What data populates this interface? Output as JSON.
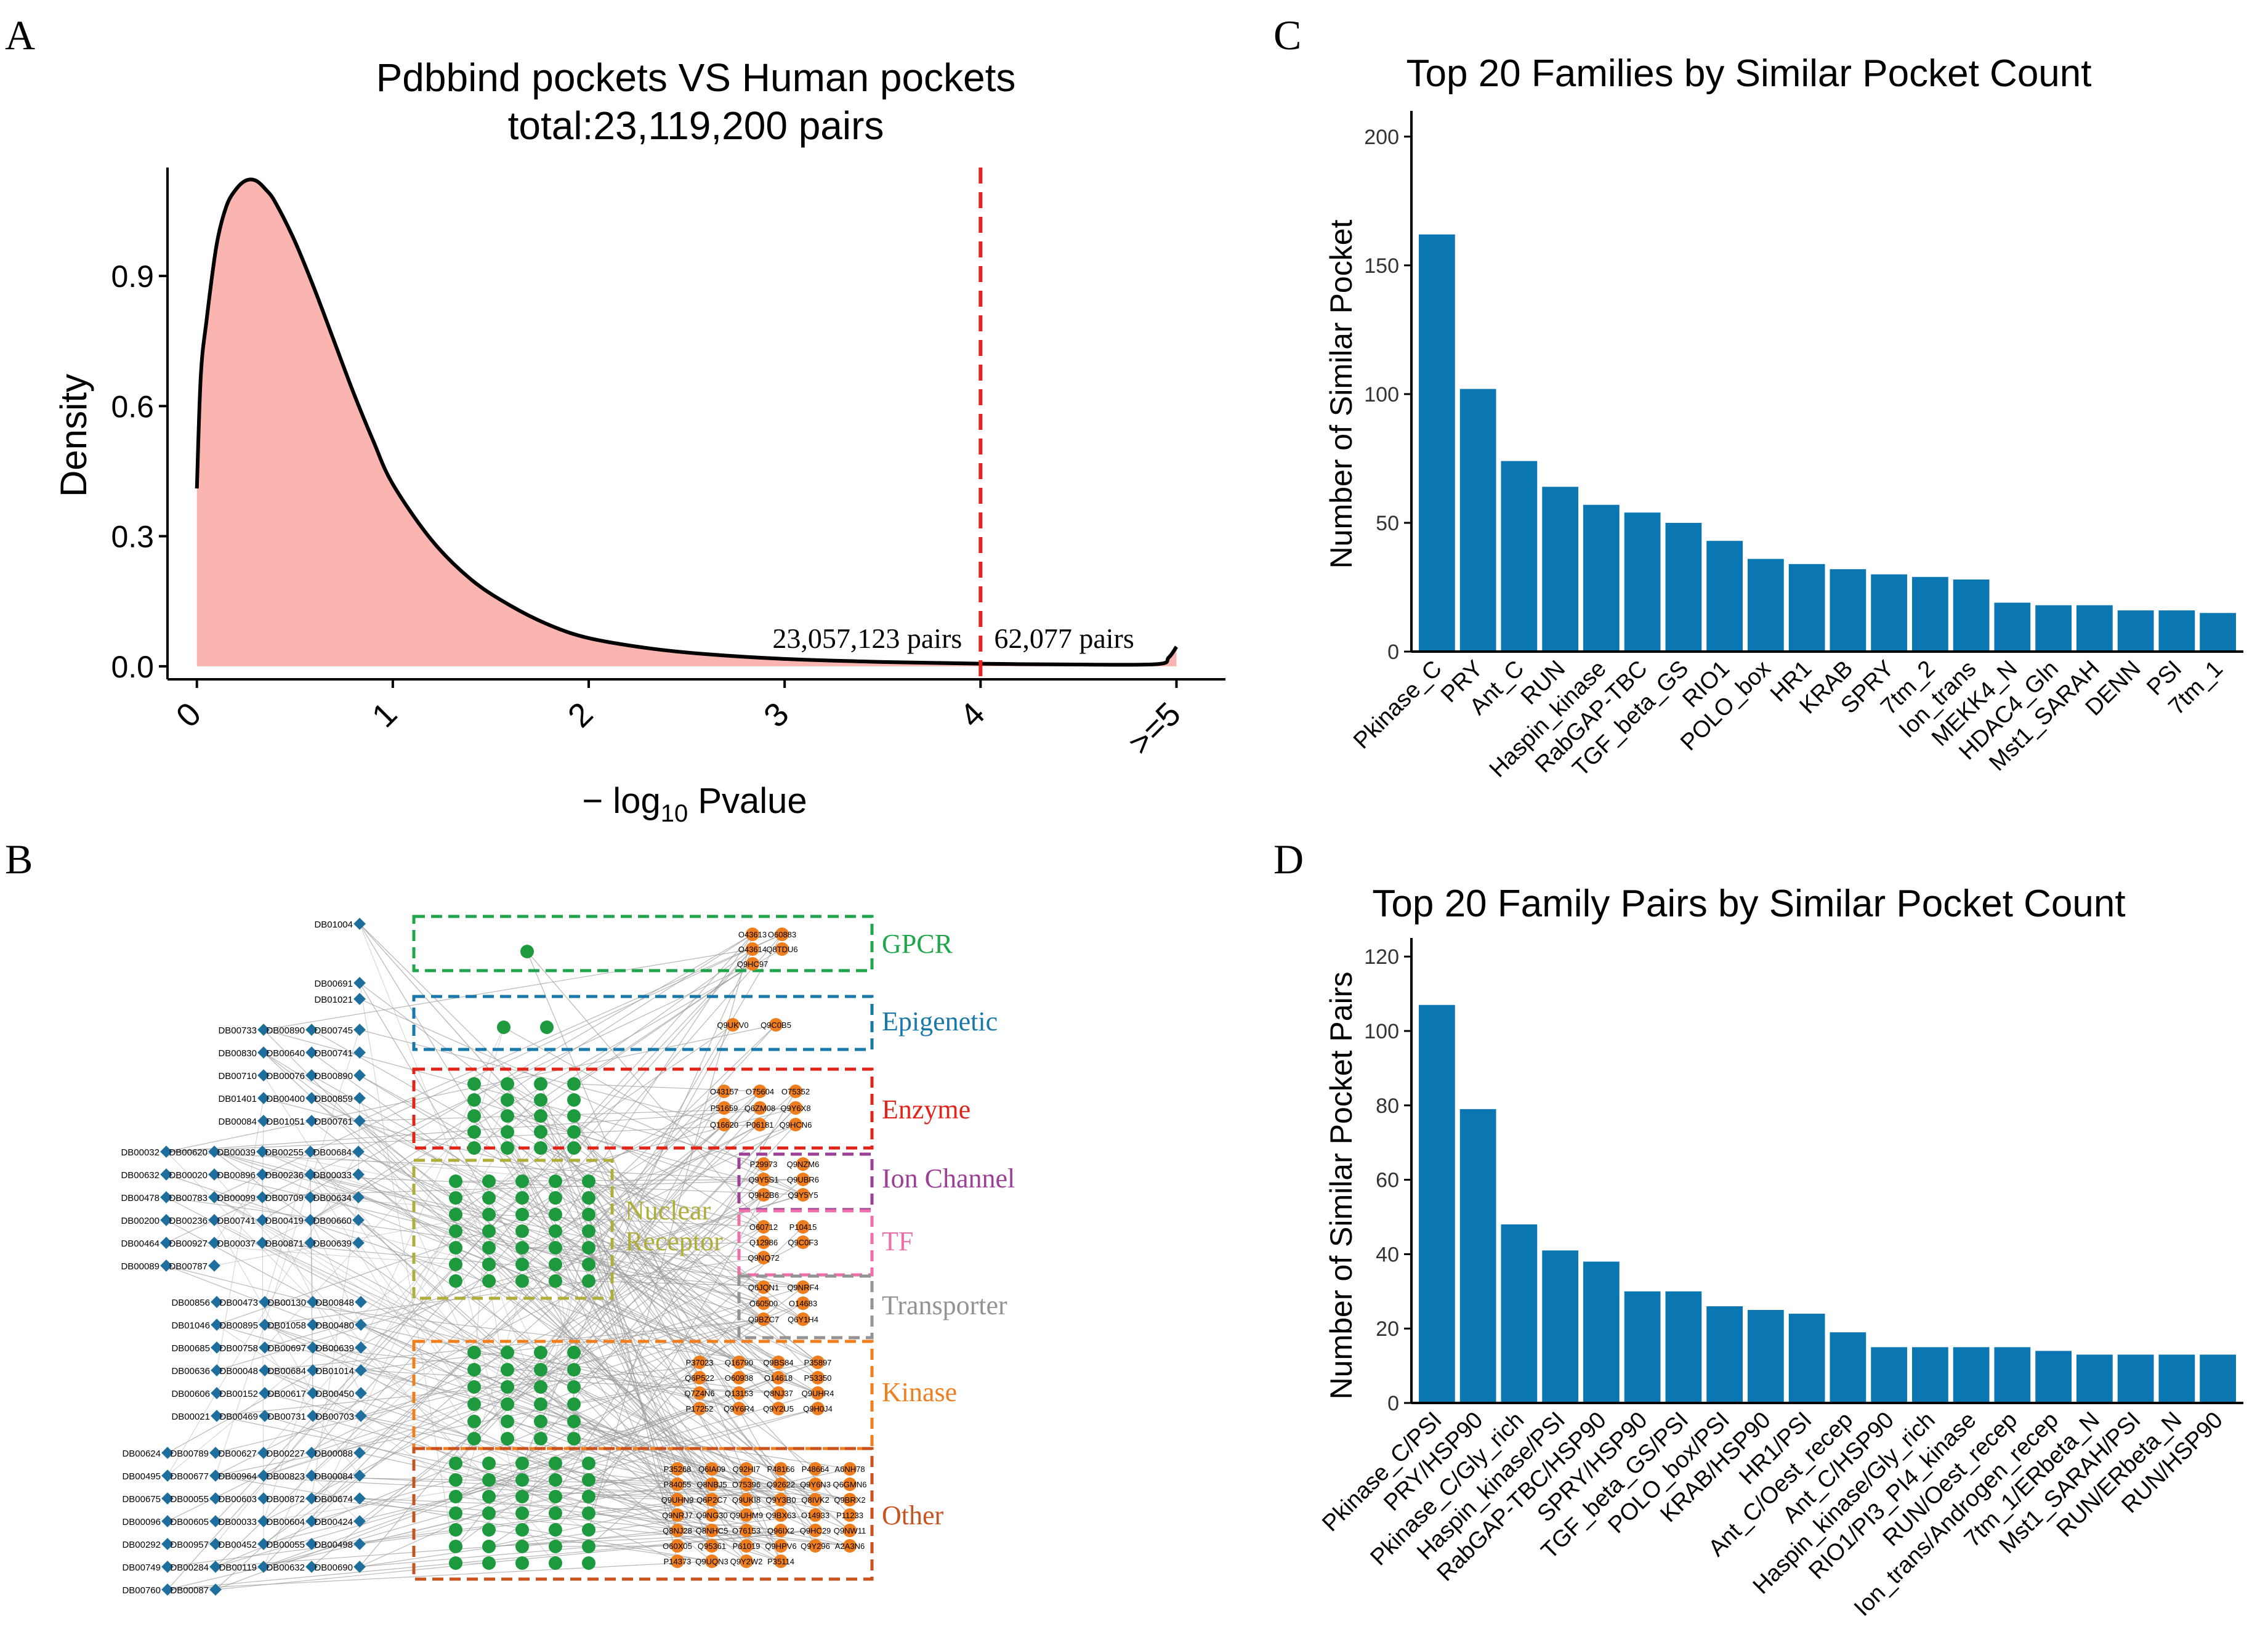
{
  "panels": {
    "a": {
      "letter": "A"
    },
    "b": {
      "letter": "B"
    },
    "c": {
      "letter": "C"
    },
    "d": {
      "letter": "D"
    }
  },
  "colors": {
    "density_fill": "#FBB5B1",
    "threshold_line": "#E8221E",
    "bar": "#0A77B3",
    "db_node": "#1F6F9E",
    "protein_node_green": "#1E9A3E",
    "protein_node_orange": "#EE7D1E"
  },
  "chart_data": [
    {
      "type": "area",
      "title": "Pdbbind pockets VS Human pockets",
      "subtitle": "total:23,119,200 pairs",
      "xlabel_prefix": "− log",
      "xlabel_sub": "10",
      "xlabel_suffix": " Pvalue",
      "ylabel": "Density",
      "xlim": [
        -0.15,
        5.25
      ],
      "ylim": [
        -0.03,
        1.15
      ],
      "x_ticks": [
        0,
        1,
        2,
        3,
        4,
        5
      ],
      "x_tick_labels": [
        "0",
        "1",
        "2",
        "3",
        "4",
        ">=5"
      ],
      "y_ticks": [
        0.0,
        0.3,
        0.6,
        0.9
      ],
      "y_tick_labels": [
        "0.0",
        "0.3",
        "0.6",
        "0.9"
      ],
      "threshold_x": 4,
      "annotations": {
        "left": "23,057,123 pairs",
        "right": "62,077 pairs"
      },
      "curve": {
        "x": [
          0.0,
          0.02,
          0.05,
          0.1,
          0.15,
          0.2,
          0.25,
          0.3,
          0.35,
          0.4,
          0.5,
          0.6,
          0.7,
          0.8,
          0.9,
          1.0,
          1.2,
          1.4,
          1.6,
          1.8,
          2.0,
          2.3,
          2.6,
          3.0,
          3.5,
          4.0,
          4.5,
          4.9,
          4.96,
          5.0
        ],
        "y": [
          0.41,
          0.67,
          0.8,
          0.97,
          1.06,
          1.1,
          1.12,
          1.12,
          1.1,
          1.07,
          0.98,
          0.87,
          0.75,
          0.63,
          0.52,
          0.42,
          0.29,
          0.2,
          0.14,
          0.095,
          0.065,
          0.042,
          0.028,
          0.017,
          0.01,
          0.006,
          0.004,
          0.005,
          0.02,
          0.045
        ]
      }
    },
    {
      "type": "bar",
      "title": "Top 20 Families by Similar Pocket Count",
      "xlabel": "",
      "ylabel": "Number of Similar Pocket",
      "ylim": [
        0,
        210
      ],
      "y_ticks": [
        0,
        50,
        100,
        150,
        200
      ],
      "categories": [
        "Pkinase_C",
        "PRY",
        "Ant_C",
        "RUN",
        "Haspin_kinase",
        "RabGAP-TBC",
        "TGF_beta_GS",
        "RIO1",
        "POLO_box",
        "HR1",
        "KRAB",
        "SPRY",
        "7tm_2",
        "Ion_trans",
        "MEKK4_N",
        "HDAC4_Gln",
        "Mst1_SARAH",
        "DENN",
        "PSI",
        "7tm_1"
      ],
      "values": [
        162,
        102,
        74,
        64,
        57,
        54,
        50,
        43,
        36,
        34,
        32,
        30,
        29,
        28,
        19,
        18,
        18,
        16,
        16,
        15
      ]
    },
    {
      "type": "bar",
      "title": "Top 20 Family Pairs by Similar Pocket Count",
      "xlabel": "",
      "ylabel": "Number of Similar Pocket Pairs",
      "ylim": [
        0,
        125
      ],
      "y_ticks": [
        0,
        20,
        40,
        60,
        80,
        100,
        120
      ],
      "categories": [
        "Pkinase_C/PSI",
        "PRY/HSP90",
        "Pkinase_C/Gly_rich",
        "Haspin_kinase/PSI",
        "RabGAP-TBC/HSP90",
        "SPRY/HSP90",
        "TGF_beta_GS/PSI",
        "POLO_box/PSI",
        "KRAB/HSP90",
        "HR1/PSI",
        "Ant_C/Oest_recep",
        "Ant_C/HSP90",
        "Haspin_kinase/Gly_rich",
        "RIO1/PI3_PI4_kinase",
        "RUN/Oest_recep",
        "Ion_trans/Androgen_recep",
        "7tm_1/ERbeta_N",
        "Mst1_SARAH/PSI",
        "RUN/ERbeta_N",
        "RUN/HSP90"
      ],
      "values": [
        107,
        79,
        48,
        41,
        38,
        30,
        30,
        26,
        25,
        24,
        19,
        15,
        15,
        15,
        15,
        14,
        13,
        13,
        13,
        13
      ]
    }
  ],
  "network": {
    "groups": [
      {
        "label": "GPCR",
        "color": "#1FA64A",
        "proteins": [
          "O43613",
          "O60883",
          "O43614",
          "Q8TDU6",
          "Q9HC97"
        ]
      },
      {
        "label": "Epigenetic",
        "color": "#1778A9",
        "proteins": [
          "Q9UKV0",
          "Q9C0B5"
        ]
      },
      {
        "label": "Enzyme",
        "color": "#E2231A",
        "proteins": [
          "O43157",
          "O75604",
          "O75352",
          "P51659",
          "Q6ZM08",
          "Q9Y6X8",
          "Q16620",
          "P06181",
          "Q9HCN6"
        ]
      },
      {
        "label": "Ion Channel",
        "color": "#9B3F97",
        "proteins": [
          "P29973",
          "Q9NZM6",
          "Q9Y5S1",
          "Q9UBR6",
          "Q9H2B6",
          "Q9Y5Y5"
        ]
      },
      {
        "label": "TF",
        "color": "#EE6FA9",
        "proteins": [
          "O60712",
          "P10415",
          "Q12986",
          "Q9C0F3",
          "Q9NQ72"
        ]
      },
      {
        "label": "Transporter",
        "color": "#939393",
        "proteins": [
          "Q6JQN1",
          "Q9NRF4",
          "O60500",
          "O14683",
          "Q9BZC7",
          "Q6Y1H4"
        ]
      },
      {
        "label": "Nuclear\nReceptor",
        "color": "#AFAE3C",
        "proteins": []
      },
      {
        "label": "Kinase",
        "color": "#F07E1E",
        "proteins": [
          "P37023",
          "Q16790",
          "Q9BS84",
          "P35897",
          "Q6P522",
          "O60938",
          "O14618",
          "P53350",
          "Q7Z4N6",
          "Q13153",
          "Q8NJ37",
          "Q9UHR4",
          "P17252",
          "Q9Y6R4",
          "Q9Y2U5",
          "Q9H0J4"
        ]
      },
      {
        "label": "Other",
        "color": "#C9521D",
        "proteins": [
          "P35268",
          "Q6IA09",
          "Q92HI7",
          "P48166",
          "P48664",
          "A6NH78",
          "P84055",
          "Q8NBJ5",
          "O75396",
          "Q92622",
          "Q9Y6N3",
          "Q6GMN6",
          "Q9UHN9",
          "Q6P2C7",
          "Q9UKI8",
          "Q9Y3B0",
          "Q8IVK2",
          "Q9BRX2",
          "Q9NRJ7",
          "Q9NG30",
          "Q9UHM9",
          "Q9BX63",
          "O14933",
          "P11233",
          "Q8NJ28",
          "Q8NHC5",
          "O76153",
          "Q96IX2",
          "Q9HC29",
          "Q9NW11",
          "O60X05",
          "Q95361",
          "P61019",
          "Q9HPV6",
          "Q9Y296",
          "A2A3N6",
          "P14373",
          "Q9UQN3",
          "Q9Y2W2",
          "P35114"
        ]
      }
    ],
    "db_labels_left": {
      "gpcr": [
        "DB01004"
      ],
      "epi": [
        "DB00691",
        "DB01021"
      ],
      "enzyme": [
        "DB00733",
        "DB00890",
        "DB00745",
        "DB00830",
        "DB00640",
        "DB00741",
        "DB00710",
        "DB00076",
        "DB00890",
        "DB01401",
        "DB00400",
        "DB00859",
        "DB00084",
        "DB01051",
        "DB00761"
      ],
      "nr": [
        "DB00032",
        "DB00620",
        "DB00039",
        "DB00255",
        "DB00684",
        "DB00632",
        "DB00020",
        "DB00896",
        "DB00236",
        "DB00033",
        "DB00478",
        "DB00783",
        "DB00099",
        "DB00709",
        "DB00634",
        "DB00200",
        "DB00236",
        "DB00741",
        "DB00419",
        "DB00660",
        "DB00464",
        "DB00927",
        "DB00037",
        "DB00871",
        "DB00639",
        "DB00089",
        "DB00787"
      ],
      "kinase": [
        "DB00856",
        "DB00473",
        "DB00130",
        "DB00848",
        "DB01046",
        "DB00895",
        "DB01058",
        "DB00480",
        "DB00685",
        "DB00758",
        "DB00697",
        "DB00639",
        "DB00636",
        "DB00048",
        "DB00684",
        "DB01014",
        "DB00606",
        "DB00152",
        "DB00617",
        "DB00450",
        "DB00021",
        "DB00469",
        "DB00731",
        "DB00703"
      ],
      "other": [
        "DB00624",
        "DB00789",
        "DB00627",
        "DB00227",
        "DB00088",
        "DB00495",
        "DB00677",
        "DB00964",
        "DB00823",
        "DB00084",
        "DB00675",
        "DB00055",
        "DB00603",
        "DB00872",
        "DB00674",
        "DB00096",
        "DB00605",
        "DB00033",
        "DB00604",
        "DB00424",
        "DB00292",
        "DB00957",
        "DB00452",
        "DB00055",
        "DB00498",
        "DB00749",
        "DB00284",
        "DB00119",
        "DB00632",
        "DB00690",
        "DB00760",
        "DB00087"
      ]
    }
  }
}
